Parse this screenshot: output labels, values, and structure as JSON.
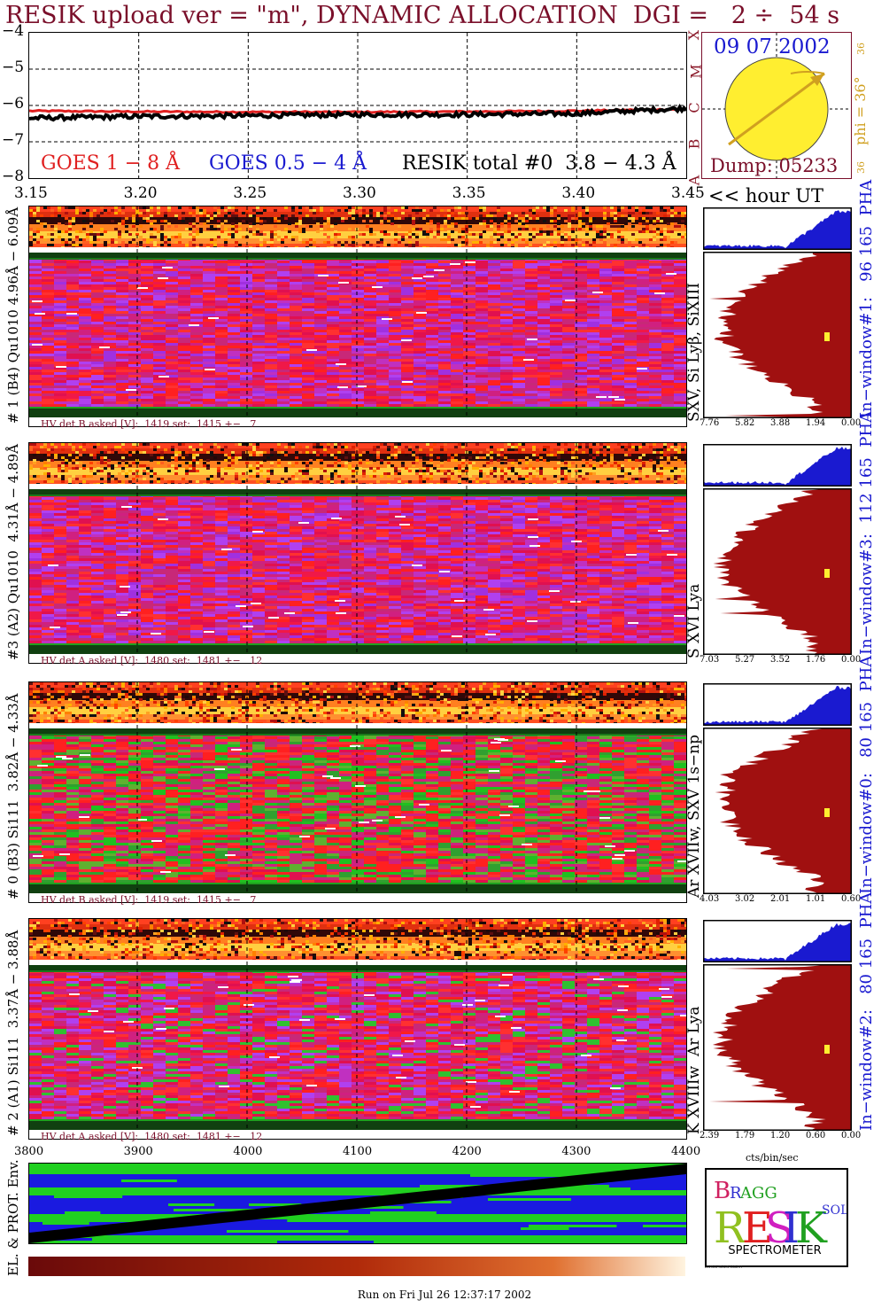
{
  "header": {
    "title": "RESIK upload ver = \"m\", DYNAMIC ALLOCATION  DGI =   2 ÷  54 s"
  },
  "goes": {
    "yticks": [
      "−4",
      "−5",
      "−6",
      "−7",
      "−8"
    ],
    "legend_goes18": "GOES 1 − 8 Å",
    "legend_goes054": "GOES 0.5 − 4 Å",
    "legend_resik": "RESIK total #0  3.8 − 4.3 Å",
    "class_letters": [
      "X",
      "M",
      "C",
      "B",
      "A"
    ],
    "xticks": [
      "3.15",
      "3.20",
      "3.25",
      "3.30",
      "3.35",
      "3.40",
      "3.45"
    ],
    "hour_label": "<< hour UT",
    "colors": {
      "goes18": "#e02020",
      "goes054": "#1a1ad0",
      "resik": "#000000"
    }
  },
  "sun": {
    "date": "09 07 2002",
    "dump": "Dump: 05233",
    "phi": "phi = 36°",
    "phi_small": "36",
    "colors": {
      "disk": "#ffee30",
      "arrow": "#d0a020"
    }
  },
  "panels": [
    {
      "id": "p1",
      "label": "# 1 (B4) Qu1010 4.96Å − 6.09Å",
      "hv": "HV det B asked [V]:  1419 set:  1415 +−   7",
      "ion": "SXV, Si Lyβ, SiXIII",
      "window": "In−window#1:   96 165  PHA",
      "pha_ticks": [
        "7.76",
        "5.82",
        "3.88",
        "1.94",
        "0.00"
      ],
      "scheme": "red"
    },
    {
      "id": "p3",
      "label": "#3 (A2) Qu1010  4.31Å − 4.89Å",
      "hv": "HV det A asked [V]:  1480 set:  1481 +−   12",
      "ion": "S XVI Lya",
      "window": "In−window#3:  112 165  PHA",
      "pha_ticks": [
        "7.03",
        "5.27",
        "3.52",
        "1.76",
        "0.00"
      ],
      "scheme": "red"
    },
    {
      "id": "p0",
      "label": "# 0 (B3) Si111  3.82Å − 4.33Å",
      "hv": "HV det B asked [V]:  1419 set:  1415 +−   7",
      "ion": "Ar XVIIw, SXV 1s−np",
      "window": "In−window#0:   80 165  PHA",
      "pha_ticks": [
        "4.03",
        "3.02",
        "2.01",
        "1.01",
        "0.60"
      ],
      "scheme": "green"
    },
    {
      "id": "p2",
      "label": "# 2 (A1) Si111  3.37Å − 3.88Å",
      "hv": "HV det A asked [V]:  1480 set:  1481 +−   12",
      "ion": "K XVIIIw  Ar Lya",
      "window": "In−window#2:   80 165  PHA",
      "pha_ticks": [
        "2.39",
        "1.79",
        "1.20",
        "0.60",
        "0.00"
      ],
      "scheme": "mixed"
    }
  ],
  "bottom": {
    "xticks": [
      "3800",
      "3900",
      "4000",
      "4100",
      "4200",
      "4300",
      "4400"
    ],
    "env_label": "EL. & PROT. Env.",
    "cts_label": "cts/bin/sec",
    "run_on": "Run on Fri Jul 26 12:37:17 2002"
  },
  "logo": {
    "letters": "BRAGG RESIK SOLAR",
    "spec": "SPECTROMETER"
  },
  "chart_data": {
    "type": "line",
    "x": [
      3.15,
      3.2,
      3.25,
      3.3,
      3.35,
      3.4,
      3.45
    ],
    "xlim": [
      3.15,
      3.45
    ],
    "ylim": [
      -8,
      -4
    ],
    "xlabel": "<< hour UT",
    "series": [
      {
        "name": "GOES 1 − 8 Å",
        "values": [
          -6.15,
          -6.17,
          -6.18,
          -6.18,
          -6.17,
          -6.15,
          -6.1
        ]
      },
      {
        "name": "RESIK total #0  3.8 − 4.3 Å",
        "values": [
          -6.35,
          -6.3,
          -6.28,
          -6.25,
          -6.25,
          -6.22,
          -6.08
        ]
      }
    ]
  }
}
